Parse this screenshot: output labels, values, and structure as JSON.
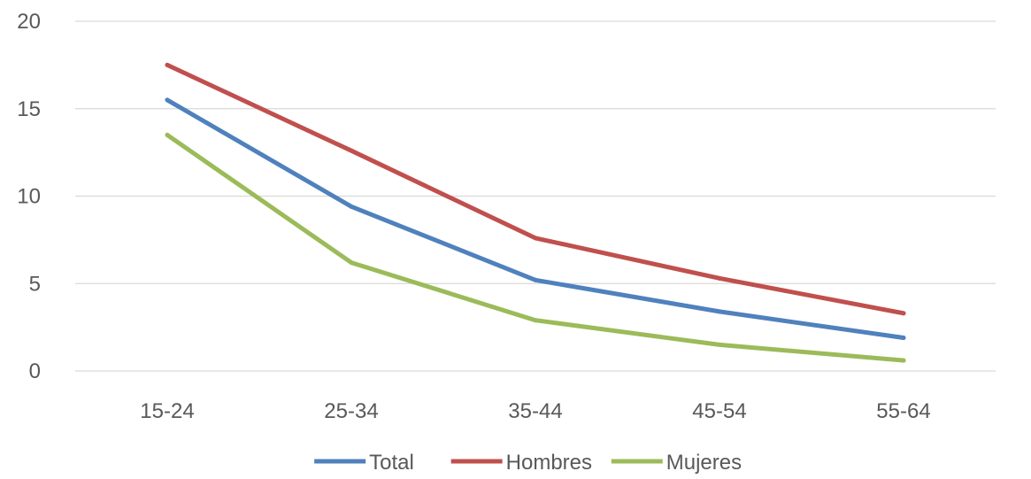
{
  "chart_data": {
    "type": "line",
    "categories": [
      "15-24",
      "25-34",
      "35-44",
      "45-54",
      "55-64"
    ],
    "ylim": [
      0,
      20
    ],
    "yticks": [
      0,
      5,
      10,
      15,
      20
    ],
    "grid": true,
    "legend_position": "bottom",
    "series": [
      {
        "name": "Total",
        "color": "#4f81bd",
        "values": [
          15.5,
          9.4,
          5.2,
          3.4,
          1.9
        ]
      },
      {
        "name": "Hombres",
        "color": "#c0504d",
        "values": [
          17.5,
          12.6,
          7.6,
          5.3,
          3.3
        ]
      },
      {
        "name": "Mujeres",
        "color": "#9bbb59",
        "values": [
          13.5,
          6.2,
          2.9,
          1.5,
          0.6
        ]
      }
    ]
  }
}
